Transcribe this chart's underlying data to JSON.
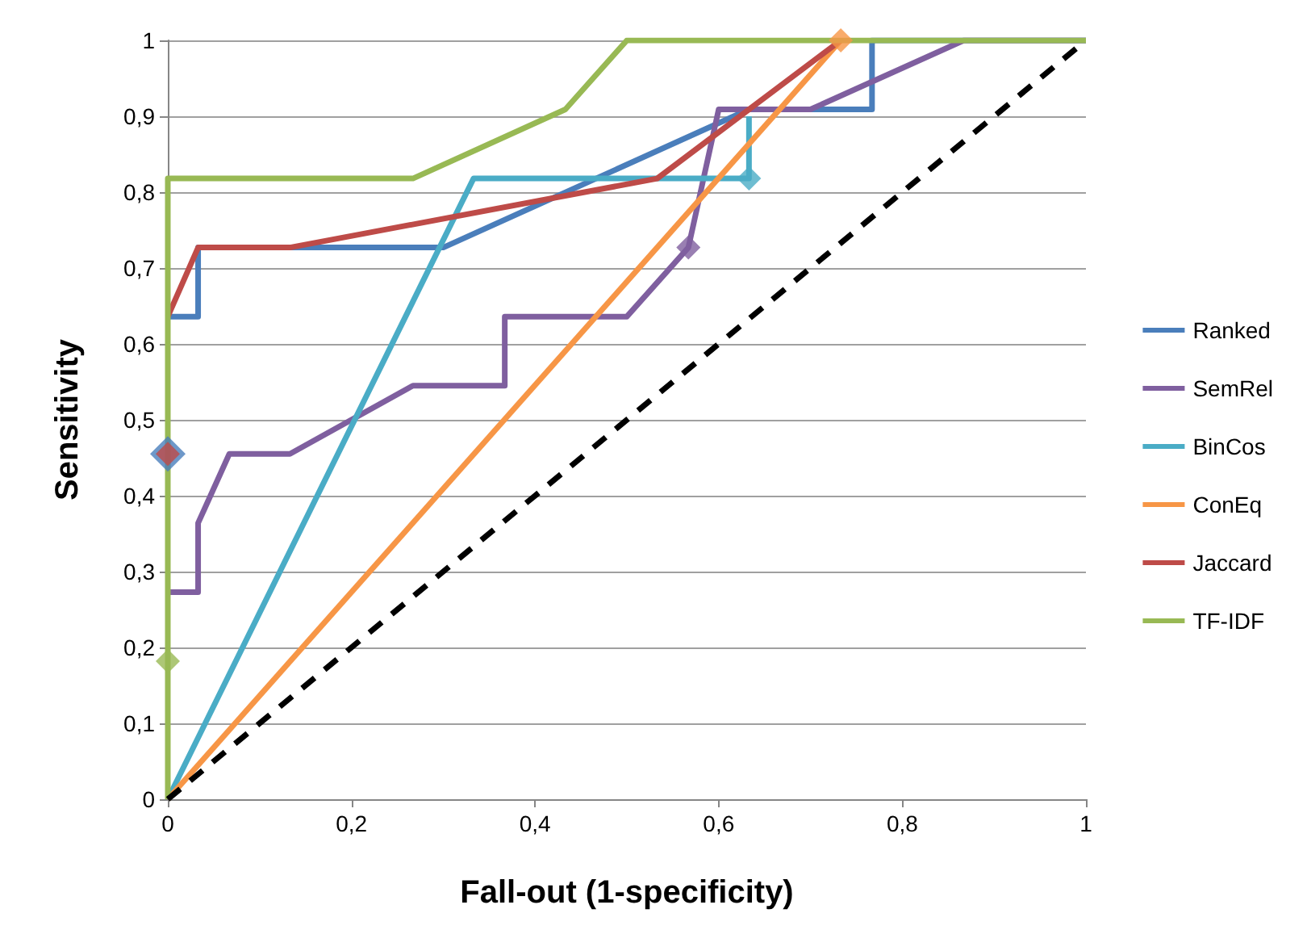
{
  "chart_data": {
    "type": "line",
    "xlabel": "Fall-out (1-specificity)",
    "ylabel": "Sensitivity",
    "xlim": [
      0,
      1
    ],
    "ylim": [
      0,
      1
    ],
    "xticks": [
      0,
      {
        "value": 0.2,
        "label": "0,2"
      },
      {
        "value": 0.4,
        "label": "0,4"
      },
      {
        "value": 0.6,
        "label": "0,6"
      },
      {
        "value": 0.8,
        "label": "0,8"
      },
      1
    ],
    "yticks": [
      0,
      {
        "value": 0.1,
        "label": "0,1"
      },
      {
        "value": 0.2,
        "label": "0,2"
      },
      {
        "value": 0.3,
        "label": "0,3"
      },
      {
        "value": 0.4,
        "label": "0,4"
      },
      {
        "value": 0.5,
        "label": "0,5"
      },
      {
        "value": 0.6,
        "label": "0,6"
      },
      {
        "value": 0.7,
        "label": "0,7"
      },
      {
        "value": 0.8,
        "label": "0,8"
      },
      {
        "value": 0.9,
        "label": "0,9"
      },
      1
    ],
    "grid": "y",
    "legend": "right",
    "marker": "none",
    "line_style": "solid",
    "series": [
      {
        "name": "Ranked",
        "color": "#4a7ebb",
        "x": [
          0,
          0.033,
          0.033,
          0.3,
          0.633,
          0.767,
          0.767,
          1
        ],
        "values": [
          0.636,
          0.636,
          0.727,
          0.727,
          0.909,
          0.909,
          1,
          1
        ]
      },
      {
        "name": "SemRel",
        "color": "#7f5f9f",
        "x": [
          0,
          0.033,
          0.033,
          0.067,
          0.133,
          0.267,
          0.367,
          0.367,
          0.5,
          0.567,
          0.6,
          0.7,
          0.867,
          1
        ],
        "values": [
          0.273,
          0.273,
          0.364,
          0.455,
          0.455,
          0.545,
          0.545,
          0.636,
          0.636,
          0.727,
          0.909,
          0.909,
          1,
          1
        ]
      },
      {
        "name": "BinCos",
        "color": "#4aacc6",
        "x": [
          0,
          0.333,
          0.633,
          0.633
        ],
        "values": [
          0,
          0.818,
          0.818,
          0.9
        ]
      },
      {
        "name": "ConEq",
        "color": "#f79646",
        "x": [
          0,
          0.733
        ],
        "values": [
          0,
          1
        ]
      },
      {
        "name": "Jaccard",
        "color": "#be4b48",
        "x": [
          0,
          0.033,
          0.133,
          0.533,
          0.733
        ],
        "values": [
          0.636,
          0.727,
          0.727,
          0.818,
          1
        ]
      },
      {
        "name": "TF-IDF",
        "color": "#98b954",
        "x": [
          0,
          0,
          0.267,
          0.433,
          0.5,
          1
        ],
        "values": [
          0,
          0.818,
          0.818,
          0.909,
          1,
          1
        ]
      },
      {
        "color": "#000000",
        "line_style": "dashed",
        "x": [
          0,
          1
        ],
        "values": [
          0,
          1
        ]
      },
      {
        "type": "scatter",
        "marker": "diamond",
        "color": "#4a7ebb",
        "x": [
          0
        ],
        "values": [
          0.455
        ]
      },
      {
        "type": "scatter",
        "marker": "diamond",
        "color": "#be4b48",
        "x": [
          0
        ],
        "values": [
          0.455
        ]
      },
      {
        "type": "scatter",
        "marker": "diamond",
        "color": "#98b954",
        "x": [
          0
        ],
        "values": [
          0.182
        ]
      },
      {
        "type": "scatter",
        "marker": "diamond",
        "color": "#4aacc6",
        "x": [
          0.633
        ],
        "values": [
          0.818
        ]
      },
      {
        "type": "scatter",
        "marker": "diamond",
        "color": "#7f5f9f",
        "x": [
          0.567
        ],
        "values": [
          0.727
        ]
      },
      {
        "type": "scatter",
        "marker": "diamond",
        "color": "#f79646",
        "x": [
          0.733
        ],
        "values": [
          1
        ]
      }
    ]
  }
}
